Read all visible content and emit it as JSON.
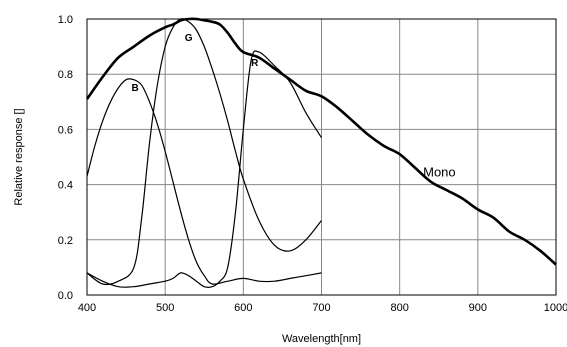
{
  "chart_data": {
    "type": "line",
    "xlabel": "Wavelength[nm]",
    "ylabel": "Relative response []",
    "xlim": [
      400,
      1000
    ],
    "ylim": [
      0,
      1.0
    ],
    "x_ticks": [
      "400",
      "500",
      "600",
      "700",
      "800",
      "900",
      "1000"
    ],
    "y_ticks": [
      "0.0",
      "0.2",
      "0.4",
      "0.6",
      "0.8",
      "1.0"
    ],
    "grid": true,
    "series": [
      {
        "name": "Mono",
        "color": "#000000",
        "x": [
          400,
          420,
          440,
          460,
          480,
          500,
          510,
          520,
          530,
          540,
          550,
          560,
          570,
          580,
          590,
          600,
          620,
          640,
          660,
          680,
          700,
          720,
          740,
          760,
          780,
          800,
          820,
          840,
          860,
          880,
          900,
          920,
          940,
          960,
          980,
          1000
        ],
        "y": [
          0.71,
          0.79,
          0.86,
          0.9,
          0.94,
          0.97,
          0.98,
          0.995,
          1.0,
          1.0,
          0.995,
          0.99,
          0.98,
          0.95,
          0.91,
          0.88,
          0.86,
          0.82,
          0.78,
          0.74,
          0.72,
          0.68,
          0.63,
          0.58,
          0.54,
          0.51,
          0.46,
          0.41,
          0.38,
          0.35,
          0.31,
          0.28,
          0.23,
          0.2,
          0.16,
          0.11
        ]
      },
      {
        "name": "B",
        "color": "#000000",
        "x": [
          400,
          410,
          420,
          430,
          440,
          450,
          460,
          470,
          480,
          490,
          500,
          510,
          520,
          530,
          540,
          550,
          560,
          580,
          600,
          620,
          640,
          660,
          680,
          700
        ],
        "y": [
          0.43,
          0.54,
          0.63,
          0.7,
          0.75,
          0.78,
          0.78,
          0.76,
          0.7,
          0.62,
          0.52,
          0.41,
          0.3,
          0.2,
          0.12,
          0.07,
          0.04,
          0.05,
          0.06,
          0.05,
          0.05,
          0.06,
          0.07,
          0.08
        ]
      },
      {
        "name": "G",
        "color": "#000000",
        "x": [
          400,
          420,
          440,
          460,
          470,
          480,
          490,
          500,
          510,
          520,
          530,
          540,
          550,
          560,
          570,
          580,
          590,
          600,
          620,
          640,
          660,
          680,
          700
        ],
        "y": [
          0.08,
          0.04,
          0.05,
          0.1,
          0.28,
          0.55,
          0.76,
          0.9,
          0.97,
          1.0,
          0.99,
          0.96,
          0.9,
          0.82,
          0.73,
          0.63,
          0.52,
          0.42,
          0.27,
          0.18,
          0.16,
          0.2,
          0.27
        ]
      },
      {
        "name": "R",
        "color": "#000000",
        "x": [
          400,
          420,
          440,
          460,
          480,
          500,
          510,
          520,
          530,
          540,
          550,
          560,
          570,
          580,
          590,
          600,
          610,
          620,
          640,
          660,
          680,
          700
        ],
        "y": [
          0.08,
          0.05,
          0.03,
          0.03,
          0.04,
          0.05,
          0.06,
          0.08,
          0.07,
          0.05,
          0.03,
          0.03,
          0.05,
          0.1,
          0.3,
          0.6,
          0.85,
          0.88,
          0.83,
          0.77,
          0.66,
          0.57
        ]
      }
    ]
  }
}
